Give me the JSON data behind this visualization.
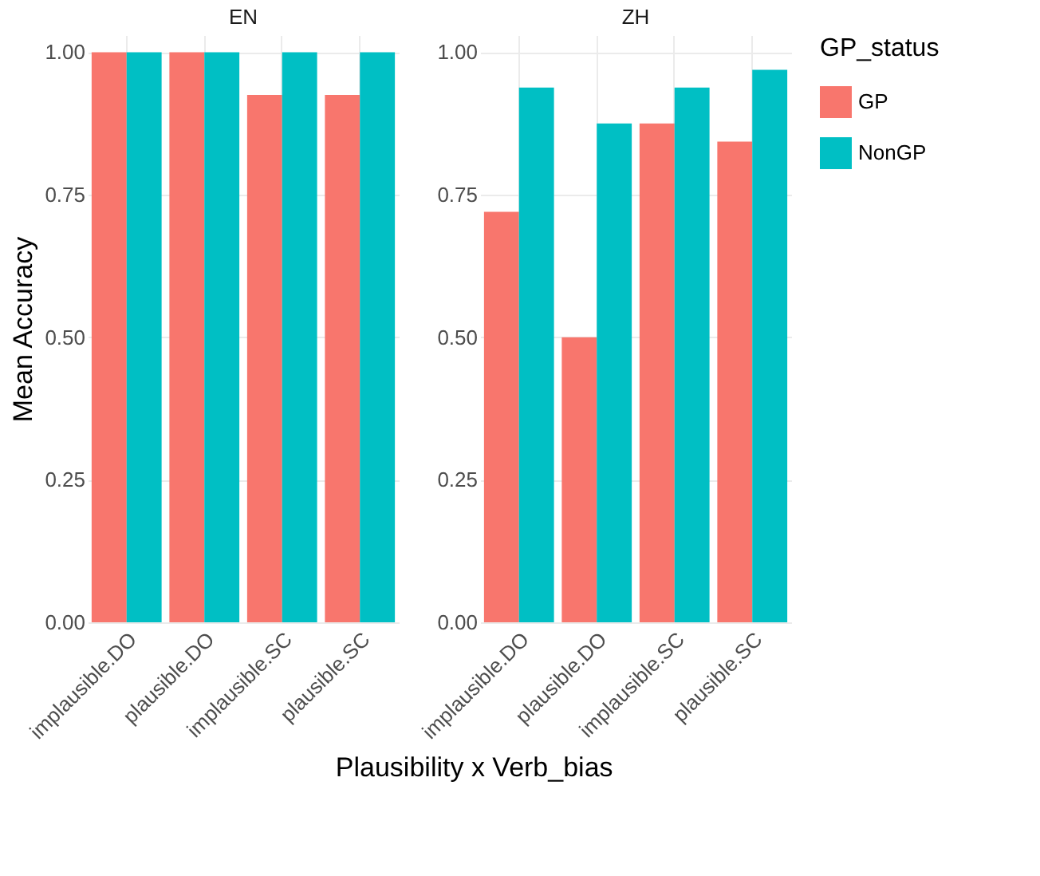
{
  "chart_data": [
    {
      "type": "bar",
      "title": "EN",
      "ylabel": "Mean Accuracy",
      "xlabel": "Plausibility x Verb_bias",
      "categories": [
        "implausible.DO",
        "plausible.DO",
        "implausible.SC",
        "plausible.SC"
      ],
      "series": [
        {
          "name": "GP",
          "color": "#f8766d",
          "values": [
            1,
            1,
            0.925,
            0.925
          ]
        },
        {
          "name": "NonGP",
          "color": "#00bfc4",
          "values": [
            1,
            1,
            1,
            1
          ]
        }
      ],
      "ylim": [
        0,
        1.03
      ],
      "yticks": [
        {
          "value": 0,
          "label": "0.00"
        },
        {
          "value": 0.25,
          "label": "0.25"
        },
        {
          "value": 0.5,
          "label": "0.50"
        },
        {
          "value": 0.75,
          "label": "0.75"
        },
        {
          "value": 1,
          "label": "1.00"
        }
      ],
      "grid": true,
      "legend": "right"
    },
    {
      "type": "bar",
      "title": "ZH",
      "categories": [
        "implausible.DO",
        "plausible.DO",
        "implausible.SC",
        "plausible.SC"
      ],
      "series": [
        {
          "name": "GP",
          "color": "#f8766d",
          "values": [
            0.72,
            0.5,
            0.875,
            0.843
          ]
        },
        {
          "name": "NonGP",
          "color": "#00bfc4",
          "values": [
            0.938,
            0.875,
            0.938,
            0.969
          ]
        }
      ],
      "ylim": [
        0,
        1.03
      ],
      "yticks": [
        {
          "value": 0,
          "label": "0.00"
        },
        {
          "value": 0.25,
          "label": "0.25"
        },
        {
          "value": 0.5,
          "label": "0.50"
        },
        {
          "value": 0.75,
          "label": "0.75"
        },
        {
          "value": 1,
          "label": "1.00"
        }
      ],
      "grid": true,
      "legend": "right",
      "legend_title": "GP_status"
    }
  ]
}
